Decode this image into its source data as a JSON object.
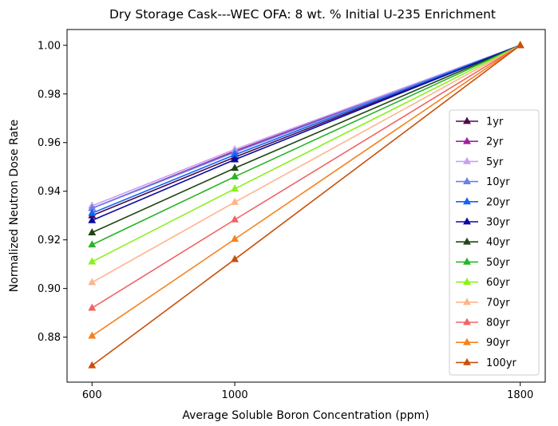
{
  "chart_data": {
    "type": "line",
    "title": "Dry Storage Cask---WEC OFA: 8 wt. % Initial U-235 Enrichment",
    "xlabel": "Average Soluble Boron Concentration (ppm)",
    "ylabel": "Normalized Neutron Dose Rate",
    "x": [
      600,
      1000,
      1800
    ],
    "xticks": [
      600,
      1000,
      1800
    ],
    "yticks": [
      "0.88",
      "0.90",
      "0.92",
      "0.94",
      "0.96",
      "0.98",
      "1.00"
    ],
    "xlim": [
      530,
      1870
    ],
    "ylim": [
      0.8615,
      1.0065
    ],
    "grid": false,
    "legend_position": "right",
    "marker": "triangle",
    "series": [
      {
        "name": "1yr",
        "color": "#4b0a4b",
        "values": [
          0.93,
          0.954,
          1.0
        ]
      },
      {
        "name": "2yr",
        "color": "#a020a0",
        "values": [
          0.933,
          0.9565,
          1.0
        ]
      },
      {
        "name": "5yr",
        "color": "#c8a0f0",
        "values": [
          0.934,
          0.9572,
          1.0
        ]
      },
      {
        "name": "10yr",
        "color": "#6a7fe8",
        "values": [
          0.933,
          0.956,
          1.0
        ]
      },
      {
        "name": "20yr",
        "color": "#1464f0",
        "values": [
          0.931,
          0.955,
          1.0
        ]
      },
      {
        "name": "30yr",
        "color": "#0a0aa0",
        "values": [
          0.928,
          0.953,
          1.0
        ]
      },
      {
        "name": "40yr",
        "color": "#1e4614",
        "values": [
          0.923,
          0.9495,
          1.0
        ]
      },
      {
        "name": "50yr",
        "color": "#28b428",
        "values": [
          0.918,
          0.946,
          1.0
        ]
      },
      {
        "name": "60yr",
        "color": "#8cf01e",
        "values": [
          0.911,
          0.941,
          1.0
        ]
      },
      {
        "name": "70yr",
        "color": "#ffb48c",
        "values": [
          0.9025,
          0.9355,
          1.0
        ]
      },
      {
        "name": "80yr",
        "color": "#f06464",
        "values": [
          0.892,
          0.9283,
          1.0
        ]
      },
      {
        "name": "90yr",
        "color": "#f5821e",
        "values": [
          0.8805,
          0.9203,
          1.0
        ]
      },
      {
        "name": "100yr",
        "color": "#c8500a",
        "values": [
          0.8683,
          0.912,
          1.0
        ]
      }
    ]
  }
}
